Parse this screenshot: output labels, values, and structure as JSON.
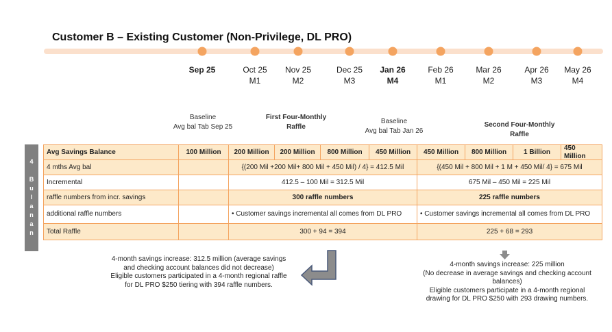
{
  "title": "Customer B – Existing Customer (Non-Privilege, DL PRO)",
  "timeline": [
    {
      "label": "Sep 25"
    },
    {
      "label": "Oct 25",
      "sub": "M1"
    },
    {
      "label": "Nov 25",
      "sub": "M2"
    },
    {
      "label": "Dec 25",
      "sub": "M3"
    },
    {
      "label": "Jan 26",
      "sub": "M4"
    },
    {
      "label": "Feb 26",
      "sub": "M1"
    },
    {
      "label": "Mar 26",
      "sub": "M2"
    },
    {
      "label": "Apr 26",
      "sub": "M3"
    },
    {
      "label": "May 26",
      "sub": "M4"
    }
  ],
  "headers": [
    {
      "lines": [
        "Baseline",
        "Avg bal Tab Sep 25"
      ]
    },
    {
      "lines": [
        "First Four-Monthly",
        "Raffle"
      ]
    },
    {
      "lines": [
        "Baseline",
        "Avg bal Tab Jan 26"
      ]
    },
    {
      "lines": [
        "Second Four-Monthly",
        "Raffle"
      ]
    }
  ],
  "side_label": "4 Bulanan",
  "table": {
    "first_row": {
      "label": "Avg Savings Balance",
      "baseline": "100 Million",
      "values": [
        "200 Million",
        "200 Million",
        "800 Million",
        "450 Million",
        "450 Million",
        "800 Million",
        "1 Billion",
        "450 Million"
      ]
    },
    "rows": [
      {
        "label": "4 mths Avg bal",
        "first": "{(200 Mil +200 Mil+ 800 Mil + 450 Mil) / 4} =  412.5 Mil",
        "second": "{(450 Mil + 800 Mil + 1 M + 450 Mil/ 4} = 675 Mil"
      },
      {
        "label": "Incremental",
        "first": "412.5 – 100 Mil = 312.5  Mil",
        "second": "675 Mil – 450 Mil = 225 Mil"
      },
      {
        "label": "raffle numbers from incr. savings",
        "first": "300 raffle numbers",
        "second": "225  raffle numbers"
      },
      {
        "label": "additional raffle numbers",
        "first": "•   Customer savings incremental all comes from DL PRO",
        "second": "•      Customer savings incremental all comes from DL PRO"
      },
      {
        "label": "Total Raffle",
        "first": "300 + 94 = 394",
        "second": "225 + 68 = 293"
      }
    ]
  },
  "notes": [
    {
      "lines": [
        "4-month savings increase: 312.5 million (average savings",
        "and checking account balances did not decrease)",
        "Eligible customers participated in a 4-month regional raffle",
        "for DL PRO $250 tiering with 394 raffle numbers."
      ]
    },
    {
      "lines": [
        "4-month savings increase: 225 million",
        "(No decrease in average savings and checking account",
        "balances)",
        "Eligible customers participate in a 4-month regional",
        "drawing for DL PRO $250 with 293 drawing numbers."
      ]
    }
  ]
}
